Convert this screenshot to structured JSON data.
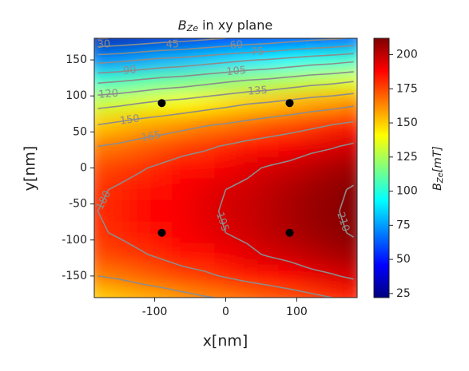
{
  "chart_data": {
    "type": "contour",
    "title": {
      "symbol": "B",
      "subscript": "Ze",
      "text": "in xy plane"
    },
    "xlabel": "x[nm]",
    "ylabel": "y[nm]",
    "colorbar_label": {
      "symbol": "B",
      "subscript": "Ze",
      "unit": "[mT]"
    },
    "colormap": "jet",
    "xlim": [
      -185,
      185
    ],
    "ylim": [
      -180,
      180
    ],
    "xticks": [
      -100,
      0,
      100
    ],
    "yticks": [
      -150,
      -100,
      -50,
      0,
      50,
      100,
      150
    ],
    "clim": [
      22,
      212
    ],
    "cticks": [
      25,
      50,
      75,
      100,
      125,
      150,
      175,
      200
    ],
    "x": [
      -180,
      -150,
      -120,
      -90,
      -60,
      -30,
      0,
      30,
      60,
      90,
      120,
      150,
      180
    ],
    "y": [
      180,
      150,
      120,
      90,
      60,
      30,
      0,
      -30,
      -60,
      -90,
      -120,
      -150,
      -180
    ],
    "z": [
      [
        29,
        31,
        34,
        37,
        39,
        42,
        45,
        48,
        50,
        53,
        56,
        58,
        61
      ],
      [
        70,
        72,
        75,
        78,
        80,
        83,
        86,
        89,
        91,
        94,
        97,
        99,
        102
      ],
      [
        103,
        105,
        108,
        111,
        113,
        116,
        119,
        122,
        124,
        127,
        130,
        132,
        135
      ],
      [
        130,
        132,
        135,
        138,
        140,
        143,
        146,
        149,
        151,
        154,
        157,
        159,
        162
      ],
      [
        150,
        153,
        156,
        158,
        161,
        164,
        166,
        169,
        172,
        174,
        177,
        180,
        183
      ],
      [
        165,
        167,
        170,
        173,
        176,
        178,
        181,
        184,
        186,
        189,
        192,
        194,
        197
      ],
      [
        174,
        177,
        179,
        182,
        185,
        187,
        190,
        193,
        196,
        198,
        201,
        204,
        206
      ],
      [
        179,
        181,
        184,
        187,
        189,
        192,
        195,
        197,
        200,
        203,
        206,
        208,
        211
      ],
      [
        180,
        182,
        185,
        188,
        190,
        193,
        196,
        198,
        201,
        204,
        207,
        209,
        212
      ],
      [
        179,
        181,
        184,
        187,
        189,
        192,
        195,
        197,
        200,
        203,
        206,
        208,
        211
      ],
      [
        174,
        177,
        179,
        182,
        185,
        187,
        190,
        193,
        196,
        198,
        201,
        204,
        206
      ],
      [
        165,
        167,
        170,
        173,
        176,
        178,
        181,
        184,
        186,
        189,
        192,
        194,
        197
      ],
      [
        150,
        153,
        156,
        158,
        161,
        164,
        166,
        169,
        172,
        174,
        177,
        180,
        183
      ]
    ],
    "contour_levels": [
      30,
      45,
      60,
      75,
      90,
      105,
      120,
      135,
      150,
      165,
      180,
      195,
      210
    ],
    "contour_color": "#8c8c8c",
    "points": {
      "x": [
        -90,
        90,
        -90,
        90
      ],
      "y": [
        90,
        90,
        -90,
        -90
      ],
      "color": "#000000"
    }
  }
}
